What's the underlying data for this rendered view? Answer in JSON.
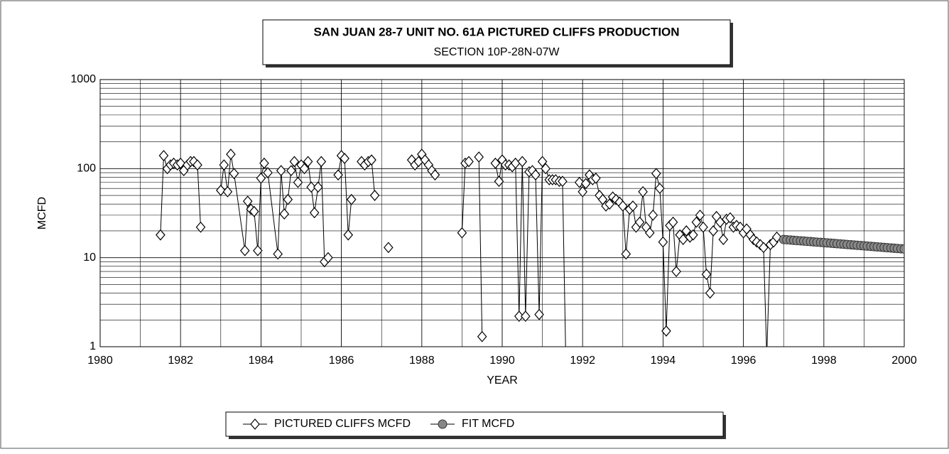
{
  "chart_data": {
    "type": "line",
    "title": "SAN JUAN 28-7 UNIT NO. 61A PICTURED CLIFFS PRODUCTION",
    "subtitle": "SECTION 10P-28N-07W",
    "x_label": "YEAR",
    "y_label": "MCFD",
    "xlim": [
      1980,
      2000
    ],
    "xticks": [
      1980,
      1982,
      1984,
      1986,
      1988,
      1990,
      1992,
      1994,
      1996,
      1998,
      2000
    ],
    "ylim": [
      1,
      1000
    ],
    "yticks": [
      1,
      10,
      100,
      1000
    ],
    "log_y": true,
    "grid": true,
    "minor_grid": true,
    "legend": "bottom",
    "series": [
      {
        "name": "PICTURED CLIFFS MCFD",
        "color": "#000000",
        "marker": "diamond",
        "x": [
          1981.5,
          1981.58,
          1981.67,
          1981.75,
          1981.83,
          1981.92,
          1982.0,
          1982.08,
          1982.17,
          1982.25,
          1982.33,
          1982.42,
          1982.5,
          null,
          1983.0,
          1983.08,
          1983.17,
          1983.25,
          1983.33,
          1983.6,
          1983.67,
          1983.75,
          1983.83,
          1983.92,
          1984.0,
          1984.08,
          1984.17,
          1984.42,
          1984.5,
          1984.58,
          1984.67,
          1984.75,
          1984.83,
          1984.92,
          1985.0,
          1985.08,
          1985.17,
          1985.25,
          1985.33,
          1985.42,
          1985.5,
          1985.58,
          1985.67,
          null,
          1985.92,
          1986.0,
          1986.08,
          1986.17,
          1986.25,
          null,
          1986.5,
          1986.58,
          1986.67,
          1986.75,
          1986.83,
          null,
          1987.17,
          null,
          1987.75,
          1987.83,
          1987.92,
          1988.0,
          1988.08,
          1988.17,
          1988.25,
          1988.33,
          null,
          1989.0,
          1989.08,
          1989.17,
          null,
          1989.42,
          1989.5,
          null,
          1989.83,
          1989.92,
          1990.0,
          1990.08,
          1990.17,
          1990.25,
          1990.33,
          1990.42,
          1990.5,
          1990.58,
          1990.67,
          1990.75,
          1990.83,
          1990.92,
          1991.0,
          1991.08,
          1991.17,
          1991.25,
          1991.33,
          1991.42,
          1991.5,
          1991.58,
          null,
          1991.92,
          1992.0,
          1992.08,
          1992.17,
          1992.25,
          1992.33,
          1992.42,
          1992.5,
          1992.58,
          1992.67,
          1992.75,
          1992.83,
          1992.92,
          1993.0,
          1993.08,
          1993.17,
          1993.25,
          1993.33,
          1993.42,
          1993.5,
          1993.58,
          1993.67,
          1993.75,
          1993.83,
          1993.92,
          1994.0,
          1994.08,
          1994.17,
          1994.25,
          1994.33,
          1994.42,
          1994.5,
          1994.58,
          1994.67,
          1994.75,
          1994.83,
          1994.92,
          1995.0,
          1995.08,
          1995.17,
          1995.25,
          1995.33,
          1995.42,
          1995.5,
          1995.58,
          1995.67,
          1995.75,
          1995.83,
          1995.92,
          1996.0,
          1996.08,
          1996.17,
          1996.25,
          1996.33,
          1996.42,
          1996.5,
          1996.58,
          1996.67,
          1996.75,
          1996.83
        ],
        "values": [
          18,
          140,
          100,
          110,
          115,
          110,
          115,
          95,
          110,
          120,
          120,
          110,
          22,
          null,
          57,
          110,
          55,
          145,
          88,
          12,
          43,
          35,
          33,
          12,
          78,
          115,
          90,
          11,
          95,
          31,
          45,
          95,
          120,
          70,
          110,
          100,
          120,
          62,
          32,
          62,
          120,
          9,
          10,
          null,
          85,
          140,
          130,
          18,
          45,
          null,
          120,
          110,
          120,
          125,
          50,
          null,
          13,
          null,
          125,
          110,
          120,
          145,
          125,
          110,
          95,
          85,
          null,
          19,
          115,
          120,
          null,
          135,
          1.3,
          null,
          115,
          72,
          125,
          110,
          110,
          105,
          115,
          2.2,
          120,
          2.2,
          92,
          95,
          85,
          2.3,
          120,
          100,
          75,
          75,
          75,
          72,
          72,
          0.8,
          null,
          70,
          55,
          68,
          85,
          75,
          78,
          50,
          45,
          38,
          40,
          48,
          45,
          42,
          38,
          11,
          35,
          38,
          22,
          25,
          55,
          22,
          19,
          30,
          88,
          60,
          15,
          1.5,
          23,
          25,
          7,
          18,
          16,
          20,
          17,
          18,
          25,
          30,
          22,
          6.5,
          4,
          20,
          29,
          25,
          16,
          27,
          28,
          22,
          23,
          22,
          19,
          21,
          18,
          16,
          15,
          14,
          13,
          0.8,
          14,
          15,
          17
        ]
      },
      {
        "name": "FIT MCFD",
        "color": "#888888",
        "marker": "circle",
        "x": [
          1997.0,
          1997.08,
          1997.17,
          1997.25,
          1997.33,
          1997.42,
          1997.5,
          1997.58,
          1997.67,
          1997.75,
          1997.83,
          1997.92,
          1998.0,
          1998.08,
          1998.17,
          1998.25,
          1998.33,
          1998.42,
          1998.5,
          1998.58,
          1998.67,
          1998.75,
          1998.83,
          1998.92,
          1999.0,
          1999.08,
          1999.17,
          1999.25,
          1999.33,
          1999.42,
          1999.5,
          1999.58,
          1999.67,
          1999.75,
          1999.83,
          1999.92,
          2000.0
        ],
        "values": [
          16.0,
          15.89,
          15.78,
          15.67,
          15.57,
          15.46,
          15.36,
          15.25,
          15.15,
          15.04,
          14.94,
          14.84,
          14.74,
          14.64,
          14.54,
          14.44,
          14.34,
          14.24,
          14.14,
          14.05,
          13.95,
          13.86,
          13.76,
          13.67,
          13.57,
          13.48,
          13.39,
          13.3,
          13.21,
          13.12,
          13.03,
          12.94,
          12.85,
          12.76,
          12.68,
          12.59,
          12.5
        ]
      }
    ]
  }
}
